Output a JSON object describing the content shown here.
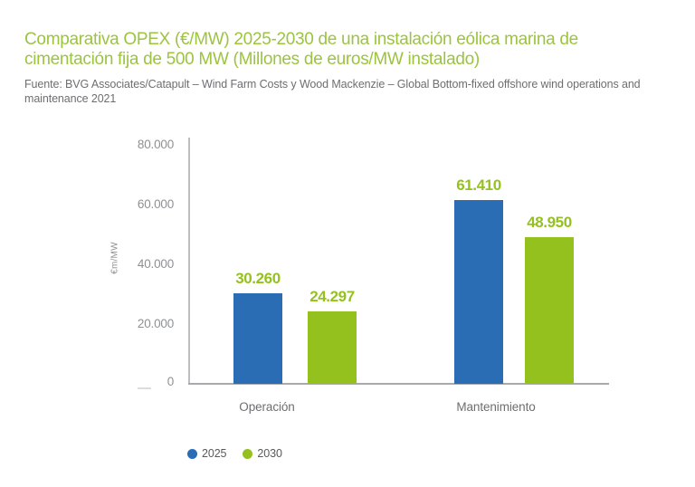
{
  "header": {
    "title_line1": "Comparativa OPEX (€/MW) 2025-2030 de una instalación eólica marina de",
    "title_line2": "cimentación fija de 500 MW (Millones de euros/MW instalado)",
    "source_line1": "Fuente: BVG Associates/Catapult – Wind Farm Costs y Wood Mackenzie – Global Bottom-fixed offshore wind operations and",
    "source_line2": "maintenance 2021"
  },
  "chart_data": {
    "type": "bar",
    "categories": [
      "Operación",
      "Mantenimiento"
    ],
    "series": [
      {
        "name": "2025",
        "color": "#2A6DB4",
        "values": [
          30260,
          61410
        ],
        "display": [
          "30.260",
          "61.410"
        ]
      },
      {
        "name": "2030",
        "color": "#95C11F",
        "values": [
          24297,
          48950
        ],
        "display": [
          "24.297",
          "48.950"
        ]
      }
    ],
    "ylabel": "€m/MW",
    "yticks": [
      "80.000",
      "60.000",
      "40.000",
      "20.000",
      "0"
    ],
    "ylim": [
      0,
      80000
    ],
    "value_label_color": "#95C11F",
    "grid": false,
    "legend_position": "bottom-left"
  },
  "colors": {
    "title_green": "#9CC43F",
    "bar_blue": "#2A6DB4",
    "bar_green": "#95C11F",
    "value_label_green": "#95C11F",
    "axis_tick_text": "#8E9093",
    "source_text": "#6D6E71",
    "category_text": "#6D6E71",
    "legend_text": "#58595B",
    "axis_line": "#BCBEC0"
  }
}
